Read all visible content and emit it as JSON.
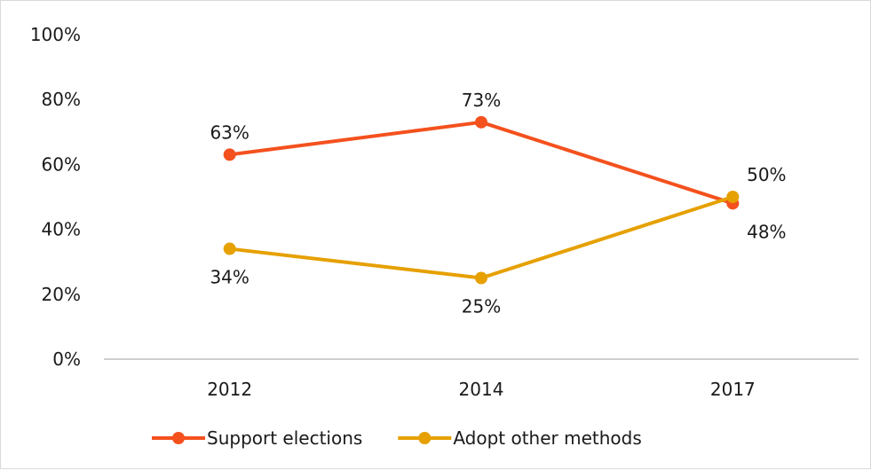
{
  "chart_data": {
    "type": "line",
    "title": "",
    "xlabel": "",
    "ylabel": "",
    "categories": [
      "2012",
      "2014",
      "2017"
    ],
    "ylim": [
      0,
      100
    ],
    "y_ticks": [
      "0%",
      "20%",
      "40%",
      "60%",
      "80%",
      "100%"
    ],
    "y_tick_values": [
      0,
      20,
      40,
      60,
      80,
      100
    ],
    "grid": false,
    "legend_position": "bottom",
    "series": [
      {
        "name": "Support elections",
        "color": "#f4511e",
        "values": [
          63,
          73,
          48
        ],
        "labels": [
          "63%",
          "73%",
          "48%"
        ],
        "label_placement": [
          "above",
          "above",
          "below"
        ]
      },
      {
        "name": "Adopt other methods",
        "color": "#e6a000",
        "values": [
          34,
          25,
          50
        ],
        "labels": [
          "34%",
          "25%",
          "50%"
        ],
        "label_placement": [
          "below",
          "below",
          "above"
        ]
      }
    ]
  }
}
